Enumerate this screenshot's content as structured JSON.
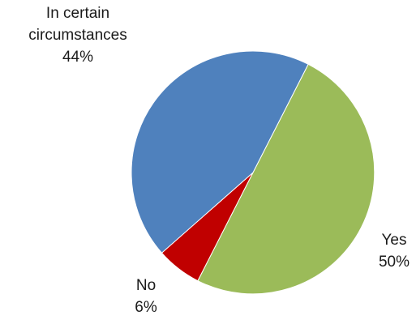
{
  "chart_data": {
    "type": "pie",
    "title": "",
    "slices": [
      {
        "label_lines": [
          "Yes"
        ],
        "value": 50,
        "value_label": "50%",
        "color": "#9BBB59"
      },
      {
        "label_lines": [
          "No"
        ],
        "value": 6,
        "value_label": "6%",
        "color": "#C00000"
      },
      {
        "label_lines": [
          "In certain",
          "circumstances"
        ],
        "value": 44,
        "value_label": "44%",
        "color": "#4F81BD"
      }
    ],
    "legend": "none"
  }
}
